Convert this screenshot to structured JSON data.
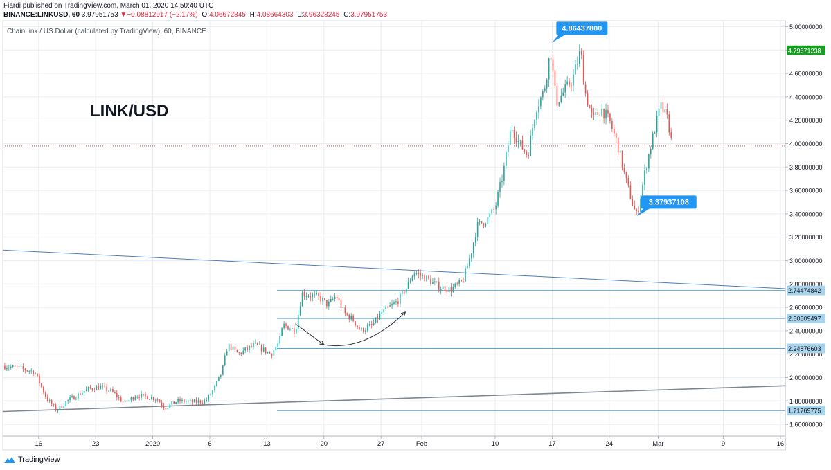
{
  "header": {
    "published_line": "Fiardi published on TradingView.com, March 01, 2020 14:50:40 UTC",
    "symbol": "BINANCE:LINKUSD, 60",
    "last": "3.97951753",
    "change": "−0.08812917 (−2.17%)",
    "o_label": "O:",
    "o": "4.06672845",
    "h_label": "H:",
    "h": "4.08664303",
    "l_label": "L:",
    "l": "3.96328245",
    "c_label": "C:",
    "c": "3.97951753"
  },
  "legend": "ChainLink / US Dollar (calculated by TradingView), 60, BINANCE",
  "watermark": "LINK/USD",
  "footer": {
    "brand": "TradingView"
  },
  "colors": {
    "up": "#26a69a",
    "down": "#ef5350",
    "hline": "#5aa4d9",
    "trendline": "#4a7ebb",
    "support": "#7f8792",
    "callout": "#2196f3",
    "current": "#1b9a24",
    "lastline": "#e05b5b"
  },
  "chart_data": {
    "type": "candlestick",
    "title": "ChainLink / US Dollar (calculated by TradingView), 60, BINANCE",
    "ylim": [
      1.5,
      5.05
    ],
    "y_ticks": [
      "5.00000000",
      "4.80000000",
      "4.60000000",
      "4.40000000",
      "4.20000000",
      "4.00000000",
      "3.80000000",
      "3.60000000",
      "3.40000000",
      "3.20000000",
      "3.00000000",
      "2.80000000",
      "2.60000000",
      "2.40000000",
      "2.20000000",
      "2.00000000",
      "1.80000000",
      "1.60000000"
    ],
    "x_ticks": [
      {
        "label": "16",
        "day": 16
      },
      {
        "label": "23",
        "day": 23
      },
      {
        "label": "2020",
        "day": 30
      },
      {
        "label": "6",
        "day": 37
      },
      {
        "label": "13",
        "day": 44
      },
      {
        "label": "20",
        "day": 51
      },
      {
        "label": "27",
        "day": 58
      },
      {
        "label": "Feb",
        "day": 63
      },
      {
        "label": "10",
        "day": 72
      },
      {
        "label": "17",
        "day": 79
      },
      {
        "label": "24",
        "day": 86
      },
      {
        "label": "Mar",
        "day": 92
      },
      {
        "label": "9",
        "day": 100
      },
      {
        "label": "16",
        "day": 107
      }
    ],
    "x_domain_days": [
      11.6,
      107.6
    ],
    "price_path": [
      [
        11.6,
        2.1
      ],
      [
        13.5,
        2.08
      ],
      [
        15.5,
        2.05
      ],
      [
        17,
        1.82
      ],
      [
        18.2,
        1.72
      ],
      [
        19.5,
        1.8
      ],
      [
        22,
        1.9
      ],
      [
        23.5,
        1.92
      ],
      [
        25,
        1.88
      ],
      [
        26.5,
        1.78
      ],
      [
        28,
        1.85
      ],
      [
        30.5,
        1.82
      ],
      [
        31.5,
        1.74
      ],
      [
        33,
        1.8
      ],
      [
        35,
        1.79
      ],
      [
        36.5,
        1.8
      ],
      [
        37.5,
        1.9
      ],
      [
        38.5,
        2.05
      ],
      [
        39.2,
        2.28
      ],
      [
        40.5,
        2.2
      ],
      [
        42.5,
        2.28
      ],
      [
        44.5,
        2.2
      ],
      [
        45.5,
        2.3
      ],
      [
        46,
        2.45
      ],
      [
        47.5,
        2.4
      ],
      [
        48.3,
        2.72
      ],
      [
        49.5,
        2.7
      ],
      [
        50.5,
        2.68
      ],
      [
        51.5,
        2.62
      ],
      [
        52.5,
        2.7
      ],
      [
        53.5,
        2.55
      ],
      [
        54.5,
        2.5
      ],
      [
        55.5,
        2.4
      ],
      [
        57,
        2.45
      ],
      [
        58,
        2.55
      ],
      [
        60,
        2.65
      ],
      [
        61,
        2.75
      ],
      [
        62,
        2.9
      ],
      [
        63.5,
        2.85
      ],
      [
        65,
        2.78
      ],
      [
        66.5,
        2.75
      ],
      [
        68,
        2.82
      ],
      [
        69,
        3.05
      ],
      [
        69.8,
        3.3
      ],
      [
        71,
        3.35
      ],
      [
        72,
        3.45
      ],
      [
        73,
        3.75
      ],
      [
        74,
        4.15
      ],
      [
        75,
        4.0
      ],
      [
        76,
        3.9
      ],
      [
        77,
        4.3
      ],
      [
        78,
        4.45
      ],
      [
        78.8,
        4.8
      ],
      [
        79.5,
        4.35
      ],
      [
        80.5,
        4.45
      ],
      [
        81.5,
        4.55
      ],
      [
        82.5,
        4.8
      ],
      [
        83,
        4.45
      ],
      [
        84,
        4.2
      ],
      [
        85,
        4.3
      ],
      [
        86,
        4.2
      ],
      [
        87,
        4.0
      ],
      [
        88,
        3.7
      ],
      [
        89,
        3.45
      ],
      [
        89.4,
        3.38
      ],
      [
        90.5,
        3.8
      ],
      [
        91.5,
        4.1
      ],
      [
        92.3,
        4.32
      ],
      [
        93.2,
        4.2
      ],
      [
        93.7,
        3.98
      ]
    ],
    "horizontal_levels": [
      2.74474842,
      2.50509497,
      2.24876603,
      1.71769775
    ],
    "level_labels": [
      "2.74474842",
      "2.50509497",
      "2.24876603",
      "1.71769775"
    ],
    "trendlines": [
      {
        "name": "descending-resistance",
        "from": {
          "day": 11.6,
          "price": 3.09
        },
        "to": {
          "day": 107.6,
          "price": 2.76
        }
      },
      {
        "name": "ascending-support",
        "from": {
          "day": 11.6,
          "price": 1.71
        },
        "to": {
          "day": 107.6,
          "price": 1.93
        }
      }
    ],
    "arrows": [
      {
        "from": {
          "day": 47.5,
          "price": 2.46
        },
        "to": {
          "day": 51,
          "price": 2.28
        }
      },
      {
        "from": {
          "day": 51,
          "price": 2.28
        },
        "to": {
          "day": 61,
          "price": 2.56
        },
        "curved": true
      }
    ],
    "annotations": [
      {
        "label": "4.86437800",
        "day": 79,
        "price": 4.864378
      },
      {
        "label": "3.37937108",
        "day": 89.4,
        "price": 3.37937108
      }
    ],
    "current_price": {
      "label": "4.79671238",
      "value": 4.79671238
    },
    "last_price_line": 3.97951753
  }
}
